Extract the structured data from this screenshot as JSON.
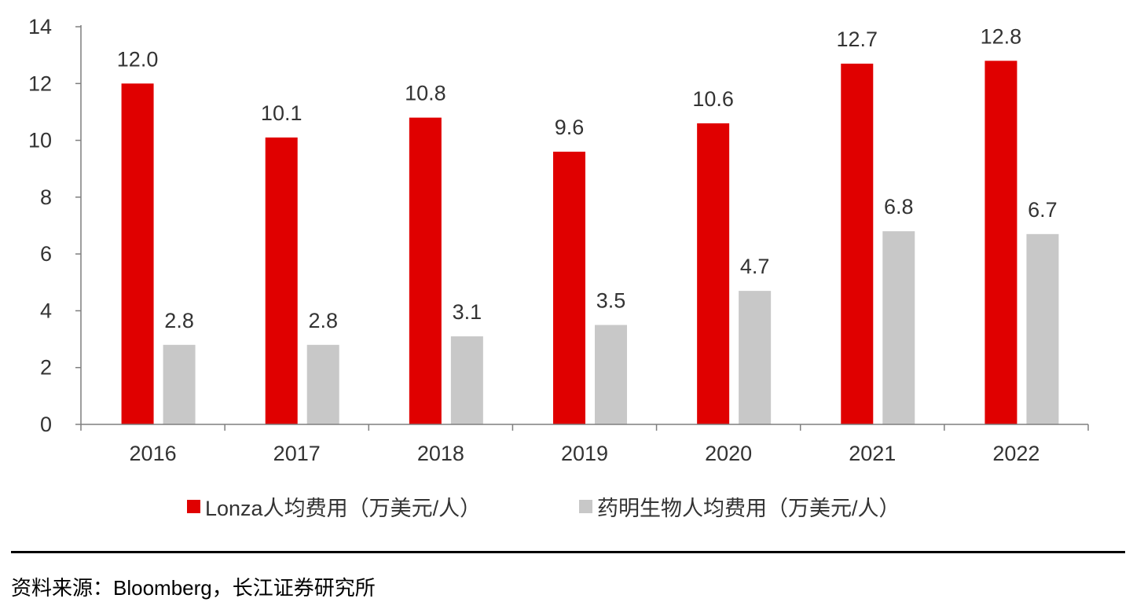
{
  "chart_data": {
    "type": "bar",
    "categories": [
      "2016",
      "2017",
      "2018",
      "2019",
      "2020",
      "2021",
      "2022"
    ],
    "series": [
      {
        "name": "Lonza人均费用（万美元/人）",
        "color": "#e00000",
        "values": [
          12.0,
          10.1,
          10.8,
          9.6,
          10.6,
          12.7,
          12.8
        ],
        "labels": [
          "12.0",
          "10.1",
          "10.8",
          "9.6",
          "10.6",
          "12.7",
          "12.8"
        ]
      },
      {
        "name": "药明生物人均费用（万美元/人）",
        "color": "#c8c8c8",
        "values": [
          2.8,
          2.8,
          3.1,
          3.5,
          4.7,
          6.8,
          6.7
        ],
        "labels": [
          "2.8",
          "2.8",
          "3.1",
          "3.5",
          "4.7",
          "6.8",
          "6.7"
        ]
      }
    ],
    "yticks": [
      "0",
      "2",
      "4",
      "6",
      "8",
      "10",
      "12",
      "14"
    ],
    "ylim": [
      0,
      14
    ],
    "title": "",
    "xlabel": "",
    "ylabel": "",
    "legend_position": "bottom"
  },
  "source": "资料来源：Bloomberg，长江证券研究所"
}
